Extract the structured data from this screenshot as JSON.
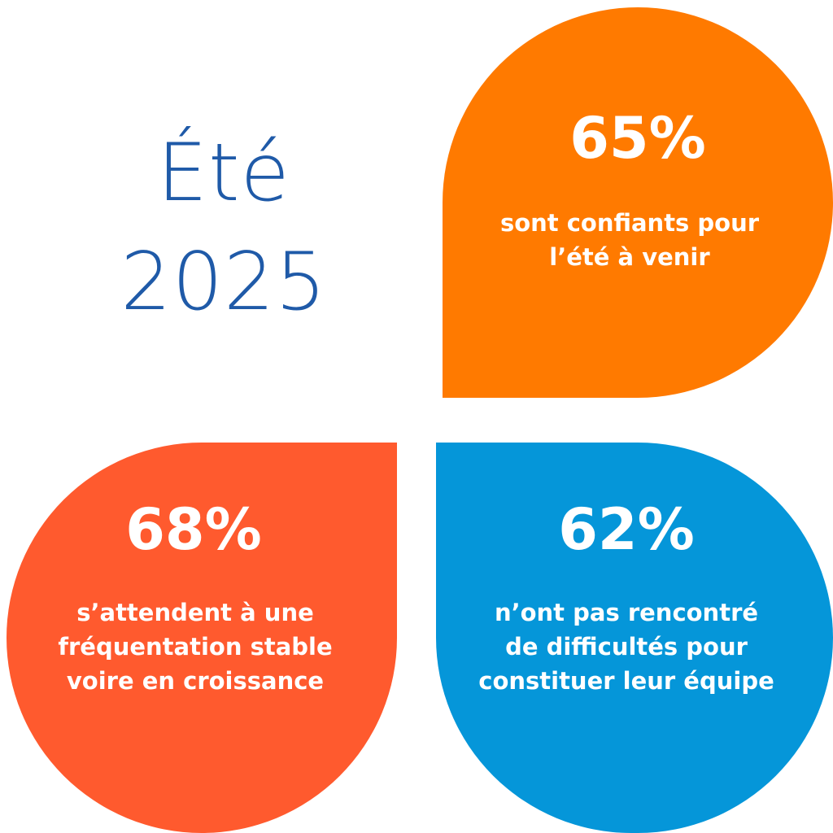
{
  "title": {
    "line1": "Été",
    "line2": "2025",
    "color": "#1f5aa8"
  },
  "stats": [
    {
      "id": "top-right",
      "percent": "65%",
      "lines": [
        "sont confiants pour",
        "l’été à venir"
      ],
      "color": "#ff7a00"
    },
    {
      "id": "bottom-left",
      "percent": "68%",
      "lines": [
        "s’attendent à une",
        "fréquentation stable",
        "voire en croissance"
      ],
      "color": "#ff5a2e"
    },
    {
      "id": "bottom-right",
      "percent": "62%",
      "lines": [
        "n’ont pas rencontré",
        "de difficultés pour",
        "constituer leur équipe"
      ],
      "color": "#0596d9"
    }
  ]
}
